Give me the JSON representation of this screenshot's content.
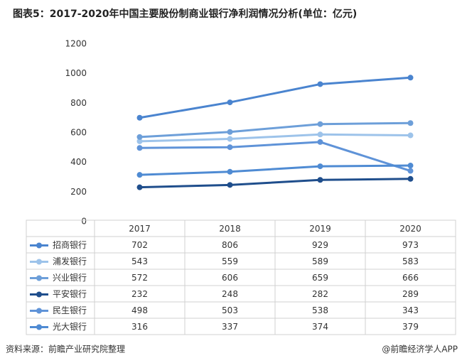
{
  "chart_data": {
    "type": "line",
    "title": "图表5：2017-2020年中国主要股份制商业银行净利润情况分析(单位：亿元)",
    "source": "资料来源：前瞻产业研究院整理",
    "credit": "@前瞻经济学人APP",
    "categories": [
      "2017",
      "2018",
      "2019",
      "2020"
    ],
    "ylim": [
      0,
      1200
    ],
    "yticks": [
      0,
      200,
      400,
      600,
      800,
      1000,
      1200
    ],
    "series": [
      {
        "name": "招商银行",
        "color": "#4a84cf",
        "values": [
          702,
          806,
          929,
          973
        ]
      },
      {
        "name": "浦发银行",
        "color": "#9dc3ea",
        "values": [
          543,
          559,
          589,
          583
        ]
      },
      {
        "name": "兴业银行",
        "color": "#6d9fd9",
        "values": [
          572,
          606,
          659,
          666
        ]
      },
      {
        "name": "平安银行",
        "color": "#1f4e8c",
        "values": [
          232,
          248,
          282,
          289
        ]
      },
      {
        "name": "民生银行",
        "color": "#5f93d8",
        "values": [
          498,
          503,
          538,
          343
        ]
      },
      {
        "name": "光大银行",
        "color": "#4f8bd3",
        "values": [
          316,
          337,
          374,
          379
        ]
      }
    ]
  }
}
